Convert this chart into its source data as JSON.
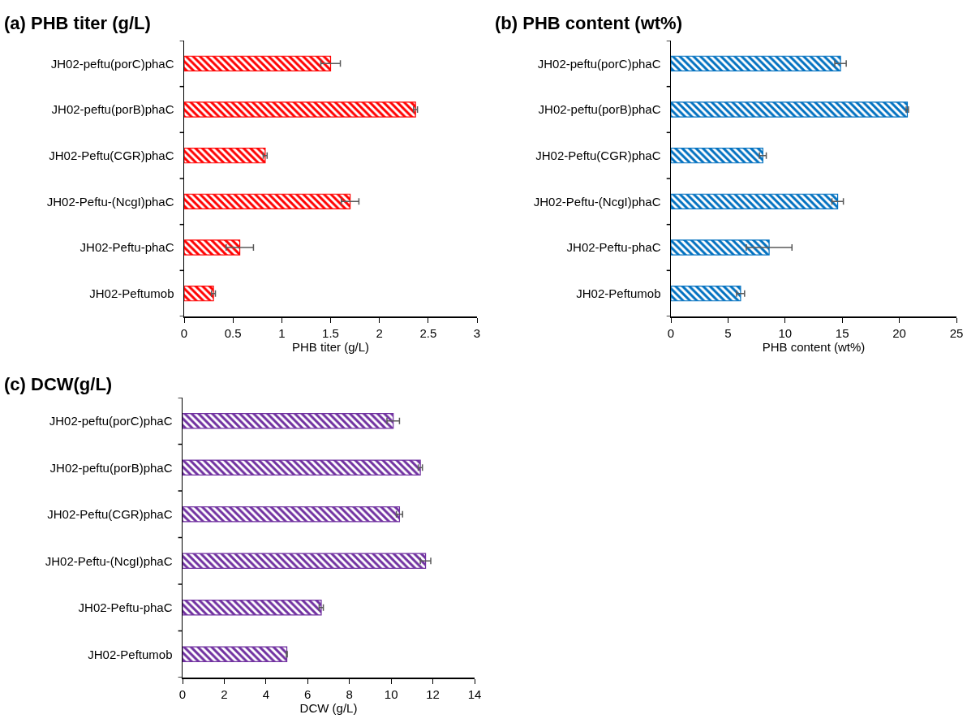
{
  "chart_data": [
    {
      "type": "bar",
      "orientation": "horizontal",
      "title": "(a) PHB titer (g/L)",
      "xlabel": "PHB titer (g/L)",
      "categories": [
        "JH02-peftu(porC)phaC",
        "JH02-peftu(porB)phaC",
        "JH02-Peftu(CGR)phaC",
        "JH02-Peftu-(NcgI)phaC",
        "JH02-Peftu-phaC",
        "JH02-Peftumob"
      ],
      "values": [
        1.5,
        2.37,
        0.83,
        1.7,
        0.57,
        0.3
      ],
      "errors": [
        0.1,
        0.02,
        0.02,
        0.09,
        0.14,
        0.02
      ],
      "color": "#ff0000",
      "xlim": [
        0,
        3
      ],
      "xticks": [
        0,
        0.5,
        1,
        1.5,
        2,
        2.5,
        3
      ],
      "grid": false,
      "legend": false
    },
    {
      "type": "bar",
      "orientation": "horizontal",
      "title": "(b) PHB content (wt%)",
      "xlabel": "PHB content (wt%)",
      "categories": [
        "JH02-peftu(porC)phaC",
        "JH02-peftu(porB)phaC",
        "JH02-Peftu(CGR)phaC",
        "JH02-Peftu-(NcgI)phaC",
        "JH02-Peftu-phaC",
        "JH02-Peftumob"
      ],
      "values": [
        14.85,
        20.7,
        8.05,
        14.6,
        8.6,
        6.1
      ],
      "errors": [
        0.5,
        0.1,
        0.3,
        0.5,
        2.0,
        0.35
      ],
      "color": "#0070c0",
      "xlim": [
        0,
        25
      ],
      "xticks": [
        0,
        5,
        10,
        15,
        20,
        25
      ],
      "grid": false,
      "legend": false
    },
    {
      "type": "bar",
      "orientation": "horizontal",
      "title": "(c) DCW(g/L)",
      "xlabel": "DCW (g/L)",
      "categories": [
        "JH02-peftu(porC)phaC",
        "JH02-peftu(porB)phaC",
        "JH02-Peftu(CGR)phaC",
        "JH02-Peftu-(NcgI)phaC",
        "JH02-Peftu-phaC",
        "JH02-Peftumob"
      ],
      "values": [
        10.1,
        11.4,
        10.4,
        11.65,
        6.65,
        5.0
      ],
      "errors": [
        0.3,
        0.1,
        0.15,
        0.25,
        0.1,
        0.02
      ],
      "color": "#7030a0",
      "xlim": [
        0,
        14
      ],
      "xticks": [
        0,
        2,
        4,
        6,
        8,
        10,
        12,
        14
      ],
      "grid": false,
      "legend": false
    }
  ]
}
